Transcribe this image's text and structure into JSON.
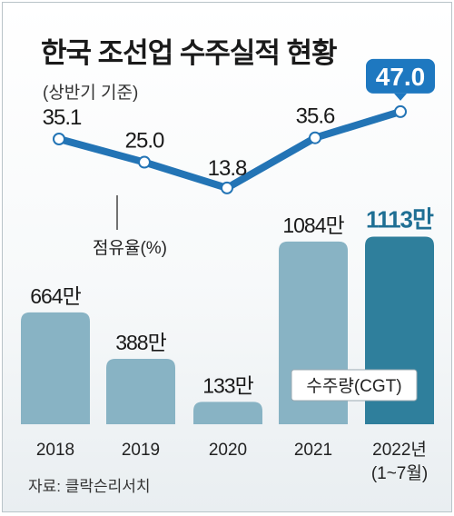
{
  "title": "한국 조선업 수주실적 현황",
  "subtitle": "(상반기 기준)",
  "source": "자료: 클락슨리서치",
  "colors": {
    "bar": "#88b3c4",
    "bar_highlight": "#2f7f9c",
    "line": "#2374b5",
    "highlight_text": "#1f6f94",
    "badge": "#1e78c0"
  },
  "chart_data": {
    "type": "bar+line",
    "categories": [
      "2018",
      "2019",
      "2020",
      "2021",
      "2022년\n(1~7월)"
    ],
    "series": [
      {
        "name": "수주량(CGT)",
        "type": "bar",
        "unit": "만",
        "values": [
          664,
          388,
          133,
          1084,
          1113
        ],
        "labels": [
          "664만",
          "388만",
          "133만",
          "1084만",
          "1113만"
        ]
      },
      {
        "name": "점유율(%)",
        "type": "line",
        "values": [
          35.1,
          25.0,
          13.8,
          35.6,
          47.0
        ],
        "labels": [
          "35.1",
          "25.0",
          "13.8",
          "35.6",
          "47.0"
        ]
      }
    ],
    "highlight_index": 4
  }
}
